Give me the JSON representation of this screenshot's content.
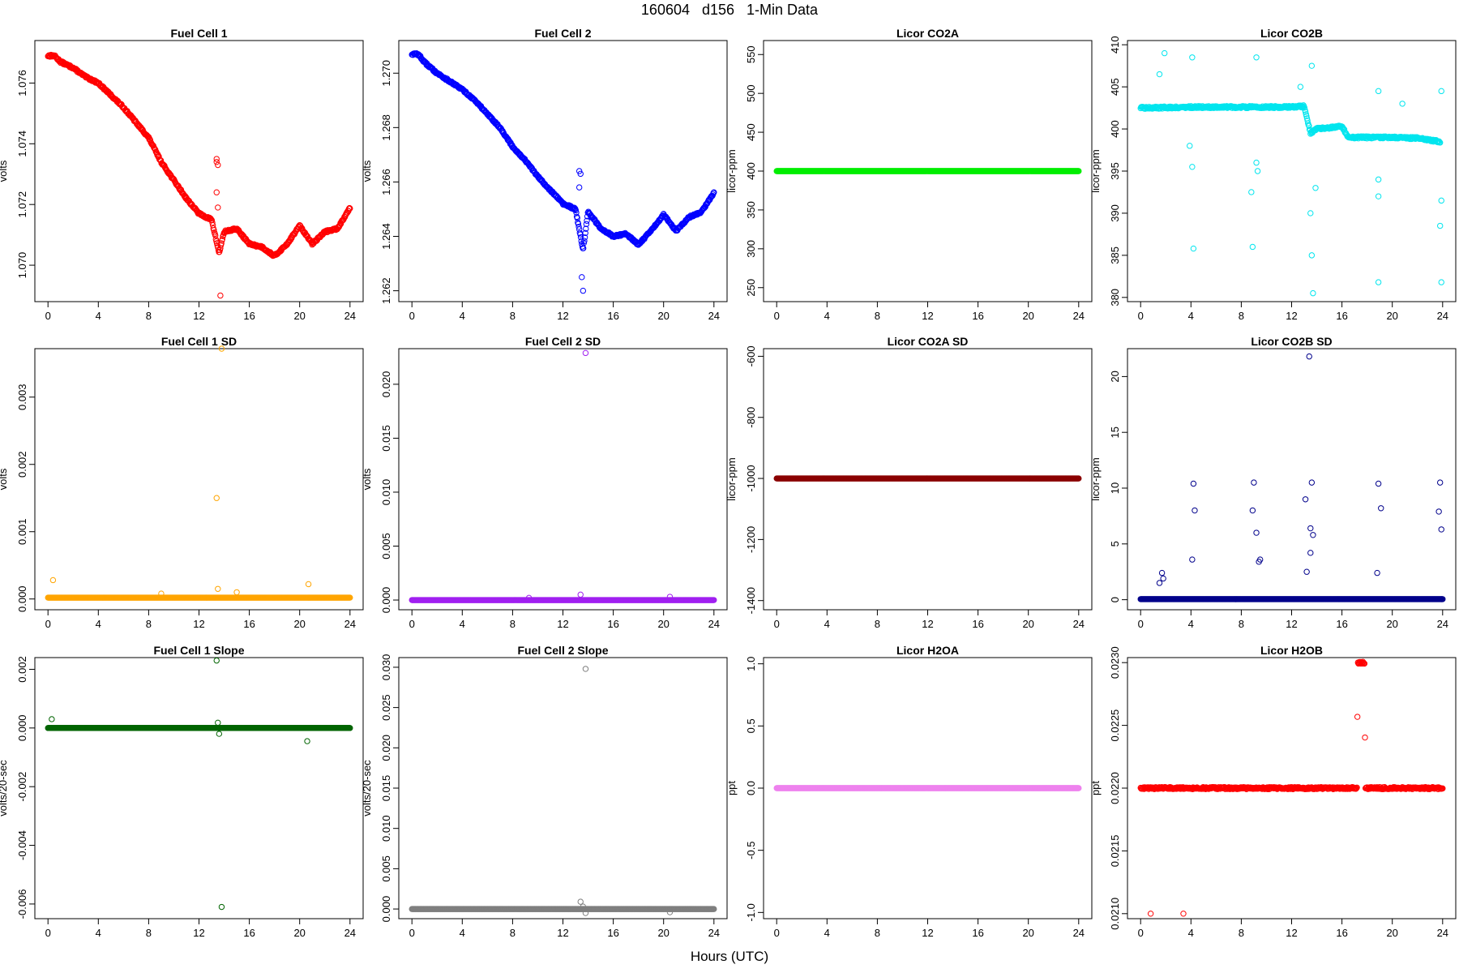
{
  "figure": {
    "title": "160604   d156   1-Min Data",
    "xlabel": "Hours (UTC)"
  },
  "chart_data": [
    {
      "id": "fc1",
      "type": "scatter",
      "title": "Fuel Cell 1",
      "ylabel": "volts",
      "color": "#ff0000",
      "xlim": [
        0,
        24
      ],
      "ylim": [
        1.0688,
        1.0774
      ],
      "xticks": [
        0,
        4,
        8,
        12,
        16,
        20,
        24
      ],
      "yticks": [
        1.07,
        1.072,
        1.074,
        1.076
      ],
      "yticklabels": [
        "1.070",
        "1.072",
        "1.074",
        "1.076"
      ],
      "trend": [
        [
          0,
          1.0769
        ],
        [
          0.5,
          1.0769
        ],
        [
          1,
          1.0767
        ],
        [
          2,
          1.0765
        ],
        [
          3,
          1.0762
        ],
        [
          4,
          1.076
        ],
        [
          5,
          1.0756
        ],
        [
          6,
          1.0752
        ],
        [
          7,
          1.0747
        ],
        [
          8,
          1.0742
        ],
        [
          9,
          1.0734
        ],
        [
          10,
          1.0728
        ],
        [
          11,
          1.0722
        ],
        [
          12,
          1.0717
        ],
        [
          13,
          1.0715
        ],
        [
          13.6,
          1.0704
        ],
        [
          14,
          1.0711
        ],
        [
          15,
          1.0712
        ],
        [
          16,
          1.0707
        ],
        [
          17,
          1.0706
        ],
        [
          18,
          1.0703
        ],
        [
          19,
          1.0707
        ],
        [
          20,
          1.0713
        ],
        [
          21,
          1.0707
        ],
        [
          22,
          1.0711
        ],
        [
          23,
          1.0712
        ],
        [
          24,
          1.0719
        ]
      ],
      "outliers": [
        [
          13.4,
          1.0735
        ],
        [
          13.4,
          1.0734
        ],
        [
          13.5,
          1.0733
        ],
        [
          13.4,
          1.0724
        ],
        [
          13.5,
          1.0719
        ],
        [
          13.7,
          1.069
        ]
      ]
    },
    {
      "id": "fc2",
      "type": "scatter",
      "title": "Fuel Cell 2",
      "ylabel": "volts",
      "color": "#0000ff",
      "xlim": [
        0,
        24
      ],
      "ylim": [
        1.2616,
        1.2712
      ],
      "xticks": [
        0,
        4,
        8,
        12,
        16,
        20,
        24
      ],
      "yticks": [
        1.262,
        1.264,
        1.266,
        1.268,
        1.27
      ],
      "yticklabels": [
        "1.262",
        "1.264",
        "1.266",
        "1.268",
        "1.270"
      ],
      "trend": [
        [
          0,
          1.2707
        ],
        [
          0.5,
          1.2707
        ],
        [
          1,
          1.2704
        ],
        [
          2,
          1.27
        ],
        [
          3,
          1.2697
        ],
        [
          4,
          1.2694
        ],
        [
          5,
          1.269
        ],
        [
          6,
          1.2685
        ],
        [
          7,
          1.268
        ],
        [
          8,
          1.2673
        ],
        [
          9,
          1.2668
        ],
        [
          10,
          1.2662
        ],
        [
          11,
          1.2657
        ],
        [
          12,
          1.2652
        ],
        [
          13,
          1.265
        ],
        [
          13.6,
          1.2635
        ],
        [
          14,
          1.2649
        ],
        [
          15,
          1.2643
        ],
        [
          16,
          1.264
        ],
        [
          17,
          1.2641
        ],
        [
          18,
          1.2637
        ],
        [
          19,
          1.2642
        ],
        [
          20,
          1.2648
        ],
        [
          21,
          1.2642
        ],
        [
          22,
          1.2647
        ],
        [
          23,
          1.2649
        ],
        [
          24,
          1.2656
        ]
      ],
      "outliers": [
        [
          13.3,
          1.2664
        ],
        [
          13.4,
          1.2663
        ],
        [
          13.3,
          1.2658
        ],
        [
          13.5,
          1.2625
        ],
        [
          13.6,
          1.262
        ]
      ]
    },
    {
      "id": "co2a",
      "type": "scatter",
      "title": "Licor CO2A",
      "ylabel": "licor-ppm",
      "color": "#00ee00",
      "xlim": [
        0,
        24
      ],
      "ylim": [
        232,
        568
      ],
      "xticks": [
        0,
        4,
        8,
        12,
        16,
        20,
        24
      ],
      "yticks": [
        250,
        300,
        350,
        400,
        450,
        500,
        550
      ],
      "yticklabels": [
        "250",
        "300",
        "350",
        "400",
        "450",
        "500",
        "550"
      ],
      "trend": [
        [
          0,
          400
        ],
        [
          24,
          400
        ]
      ],
      "outliers": []
    },
    {
      "id": "co2b",
      "type": "scatter",
      "title": "Licor CO2B",
      "ylabel": "licor-ppm",
      "color": "#00e5ee",
      "xlim": [
        0,
        24
      ],
      "ylim": [
        379.5,
        410.5
      ],
      "xticks": [
        0,
        4,
        8,
        12,
        16,
        20,
        24
      ],
      "yticks": [
        380,
        385,
        390,
        395,
        400,
        405,
        410
      ],
      "yticklabels": [
        "380",
        "385",
        "390",
        "395",
        "400",
        "405",
        "410"
      ],
      "trend": [
        [
          0,
          402.5
        ],
        [
          4,
          402.6
        ],
        [
          8,
          402.6
        ],
        [
          8.8,
          402.6
        ],
        [
          9.5,
          402.6
        ],
        [
          12,
          402.6
        ],
        [
          13,
          402.7
        ],
        [
          13.5,
          399.5
        ],
        [
          14,
          400
        ],
        [
          16,
          400.3
        ],
        [
          16.5,
          399
        ],
        [
          20,
          399
        ],
        [
          22,
          398.9
        ],
        [
          23.8,
          398.5
        ]
      ],
      "outliers": [
        [
          1.5,
          406.5
        ],
        [
          1.9,
          409
        ],
        [
          4.1,
          408.5
        ],
        [
          4.2,
          385.8
        ],
        [
          3.9,
          398
        ],
        [
          4.1,
          395.5
        ],
        [
          8.9,
          386
        ],
        [
          8.8,
          392.5
        ],
        [
          9.2,
          408.5
        ],
        [
          9.2,
          396
        ],
        [
          9.3,
          395
        ],
        [
          12.7,
          405
        ],
        [
          13.6,
          407.5
        ],
        [
          13.6,
          385
        ],
        [
          13.5,
          390
        ],
        [
          13.7,
          380.5
        ],
        [
          13.9,
          393
        ],
        [
          18.9,
          404.5
        ],
        [
          18.9,
          381.8
        ],
        [
          18.9,
          394
        ],
        [
          18.9,
          392
        ],
        [
          20.8,
          403
        ],
        [
          23.9,
          404.5
        ],
        [
          23.9,
          391.5
        ],
        [
          23.9,
          381.8
        ],
        [
          23.8,
          388.5
        ]
      ]
    },
    {
      "id": "fc1sd",
      "type": "scatter",
      "title": "Fuel Cell 1 SD",
      "ylabel": "volts",
      "color": "#ffa500",
      "xlim": [
        0,
        24
      ],
      "ylim": [
        -0.00016,
        0.00372
      ],
      "xticks": [
        0,
        4,
        8,
        12,
        16,
        20,
        24
      ],
      "yticks": [
        0,
        0.001,
        0.002,
        0.003
      ],
      "yticklabels": [
        "0.000",
        "0.001",
        "0.002",
        "0.003"
      ],
      "trend": [
        [
          0,
          2e-05
        ],
        [
          24,
          2e-05
        ]
      ],
      "outliers": [
        [
          0.4,
          0.00028
        ],
        [
          13.8,
          0.00372
        ],
        [
          13.4,
          0.0015
        ],
        [
          13.5,
          0.00015
        ],
        [
          15,
          0.0001
        ],
        [
          20.7,
          0.00022
        ],
        [
          9,
          8e-05
        ]
      ]
    },
    {
      "id": "fc2sd",
      "type": "scatter",
      "title": "Fuel Cell 2 SD",
      "ylabel": "volts",
      "color": "#a020f0",
      "xlim": [
        0,
        24
      ],
      "ylim": [
        -0.0009,
        0.0233
      ],
      "xticks": [
        0,
        4,
        8,
        12,
        16,
        20,
        24
      ],
      "yticks": [
        0,
        0.005,
        0.01,
        0.015,
        0.02
      ],
      "yticklabels": [
        "0.000",
        "0.005",
        "0.010",
        "0.015",
        "0.020"
      ],
      "trend": [
        [
          0,
          0
        ],
        [
          24,
          0
        ]
      ],
      "outliers": [
        [
          13.8,
          0.0229
        ],
        [
          13.4,
          0.0005
        ],
        [
          9.3,
          0.0002
        ],
        [
          20.5,
          0.0003
        ]
      ]
    },
    {
      "id": "co2asd",
      "type": "scatter",
      "title": "Licor CO2A SD",
      "ylabel": "licor-ppm",
      "color": "#8b0000",
      "xlim": [
        0,
        24
      ],
      "ylim": [
        -1430,
        -575
      ],
      "xticks": [
        0,
        4,
        8,
        12,
        16,
        20,
        24
      ],
      "yticks": [
        -1400,
        -1200,
        -1000,
        -800,
        -600
      ],
      "yticklabels": [
        "-1400",
        "-1200",
        "-1000",
        "-800",
        "-600"
      ],
      "trend": [
        [
          0,
          -1000
        ],
        [
          24,
          -1000
        ]
      ],
      "outliers": []
    },
    {
      "id": "co2bsd",
      "type": "scatter",
      "title": "Licor CO2B SD",
      "ylabel": "licor-ppm",
      "color": "#00008b",
      "xlim": [
        0,
        24
      ],
      "ylim": [
        -0.9,
        22.5
      ],
      "xticks": [
        0,
        4,
        8,
        12,
        16,
        20,
        24
      ],
      "yticks": [
        0,
        5,
        10,
        15,
        20
      ],
      "yticklabels": [
        "0",
        "5",
        "10",
        "15",
        "20"
      ],
      "trend": [
        [
          0,
          0.05
        ],
        [
          24,
          0.05
        ]
      ],
      "outliers": [
        [
          1.5,
          1.5
        ],
        [
          1.7,
          2.4
        ],
        [
          1.8,
          1.9
        ],
        [
          4.1,
          3.6
        ],
        [
          4.2,
          10.4
        ],
        [
          4.3,
          8
        ],
        [
          8.9,
          8
        ],
        [
          9,
          10.5
        ],
        [
          9.2,
          6
        ],
        [
          9.4,
          3.4
        ],
        [
          9.5,
          3.6
        ],
        [
          13.1,
          9
        ],
        [
          13.2,
          2.5
        ],
        [
          13.4,
          21.8
        ],
        [
          13.6,
          10.5
        ],
        [
          13.5,
          6.4
        ],
        [
          13.7,
          5.8
        ],
        [
          13.5,
          4.2
        ],
        [
          18.9,
          10.4
        ],
        [
          19.1,
          8.2
        ],
        [
          18.8,
          2.4
        ],
        [
          23.7,
          7.9
        ],
        [
          23.8,
          10.5
        ],
        [
          23.9,
          6.3
        ]
      ]
    },
    {
      "id": "fc1slope",
      "type": "scatter",
      "title": "Fuel Cell 1 Slope",
      "ylabel": "volts/20-sec",
      "color": "#006400",
      "xlim": [
        0,
        24
      ],
      "ylim": [
        -0.0065,
        0.0024
      ],
      "xticks": [
        0,
        4,
        8,
        12,
        16,
        20,
        24
      ],
      "yticks": [
        -0.006,
        -0.004,
        -0.002,
        0,
        0.002
      ],
      "yticklabels": [
        "-0.006",
        "-0.004",
        "-0.002",
        "0.000",
        "0.002"
      ],
      "trend": [
        [
          0,
          0
        ],
        [
          24,
          0
        ]
      ],
      "outliers": [
        [
          0.3,
          0.0003
        ],
        [
          13.4,
          0.0023
        ],
        [
          13.8,
          -0.0061
        ],
        [
          20.6,
          -0.00045
        ],
        [
          13.5,
          0.00018
        ],
        [
          13.6,
          -0.0002
        ]
      ]
    },
    {
      "id": "fc2slope",
      "type": "scatter",
      "title": "Fuel Cell 2 Slope",
      "ylabel": "volts/20-sec",
      "color": "#7f7f7f",
      "xlim": [
        0,
        24
      ],
      "ylim": [
        -0.0012,
        0.0312
      ],
      "xticks": [
        0,
        4,
        8,
        12,
        16,
        20,
        24
      ],
      "yticks": [
        0,
        0.005,
        0.01,
        0.015,
        0.02,
        0.025,
        0.03
      ],
      "yticklabels": [
        "0.000",
        "0.005",
        "0.010",
        "0.015",
        "0.020",
        "0.025",
        "0.030"
      ],
      "trend": [
        [
          0,
          0
        ],
        [
          24,
          0
        ]
      ],
      "outliers": [
        [
          13.8,
          0.0298
        ],
        [
          13.4,
          0.0009
        ],
        [
          13.6,
          0.0003
        ],
        [
          13.8,
          -0.0005
        ],
        [
          20.5,
          -0.0004
        ]
      ]
    },
    {
      "id": "h2oa",
      "type": "scatter",
      "title": "Licor H2OA",
      "ylabel": "ppt",
      "color": "#ee82ee",
      "xlim": [
        0,
        24
      ],
      "ylim": [
        -1.05,
        1.05
      ],
      "xticks": [
        0,
        4,
        8,
        12,
        16,
        20,
        24
      ],
      "yticks": [
        -1,
        -0.5,
        0,
        0.5,
        1
      ],
      "yticklabels": [
        "-1.0",
        "-0.5",
        "0.0",
        "0.5",
        "1.0"
      ],
      "trend": [
        [
          0,
          0
        ],
        [
          24,
          0
        ]
      ],
      "outliers": []
    },
    {
      "id": "h2ob",
      "type": "scatter",
      "title": "Licor H2OB",
      "ylabel": "ppt",
      "color": "#ff0000",
      "xlim": [
        0,
        24
      ],
      "ylim": [
        0.02096,
        0.02304
      ],
      "xticks": [
        0,
        4,
        8,
        12,
        16,
        20,
        24
      ],
      "yticks": [
        0.021,
        0.0215,
        0.022,
        0.0225,
        0.023
      ],
      "yticklabels": [
        "0.0210",
        "0.0215",
        "0.0220",
        "0.0225",
        "0.0230"
      ],
      "trend": [
        [
          0,
          0.022
        ],
        [
          17.2,
          0.022
        ],
        [
          17.25,
          0.023
        ],
        [
          17.8,
          0.023
        ],
        [
          17.85,
          0.022
        ],
        [
          24,
          0.022
        ]
      ],
      "outliers": [
        [
          0.8,
          0.021
        ],
        [
          3.4,
          0.021
        ]
      ]
    }
  ]
}
